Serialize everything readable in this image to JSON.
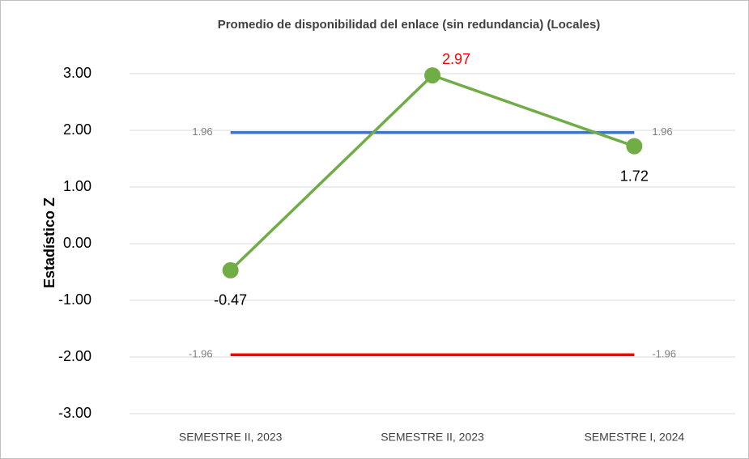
{
  "chart_data": {
    "type": "line",
    "title": "Promedio de disponibilidad del enlace (sin redundancia) (Locales)",
    "ylabel": "Estadístico Z",
    "categories": [
      "SEMESTRE II, 2023",
      "SEMESTRE II, 2023",
      "SEMESTRE I, 2024"
    ],
    "ylim": [
      -3,
      3
    ],
    "yticks": [
      {
        "value": -3,
        "label": "-3.00"
      },
      {
        "value": -2,
        "label": "-2.00"
      },
      {
        "value": -1,
        "label": "-1.00"
      },
      {
        "value": 0,
        "label": "0.00"
      },
      {
        "value": 1,
        "label": "1.00"
      },
      {
        "value": 2,
        "label": "2.00"
      },
      {
        "value": 3,
        "label": "3.00"
      }
    ],
    "grid": true,
    "series": [
      {
        "color": "#4472c4",
        "values": [
          1.96,
          1.96,
          1.96
        ],
        "markers": false,
        "label_color": "#7f7f7f",
        "label_size": "small",
        "label_pos": [
          "left",
          null,
          "right"
        ]
      },
      {
        "color": "#ff0000",
        "values": [
          -1.96,
          -1.96,
          -1.96
        ],
        "markers": false,
        "label_color": "#7f7f7f",
        "label_size": "small",
        "label_pos": [
          "left",
          null,
          "right"
        ]
      },
      {
        "color": "#70ad47",
        "values": [
          -0.47,
          2.97,
          1.72
        ],
        "markers": true,
        "label_colors": [
          "#000000",
          "#ff0000",
          "#000000"
        ],
        "label_size": "large",
        "label_pos": [
          "below",
          "above-right",
          "below"
        ]
      }
    ]
  }
}
